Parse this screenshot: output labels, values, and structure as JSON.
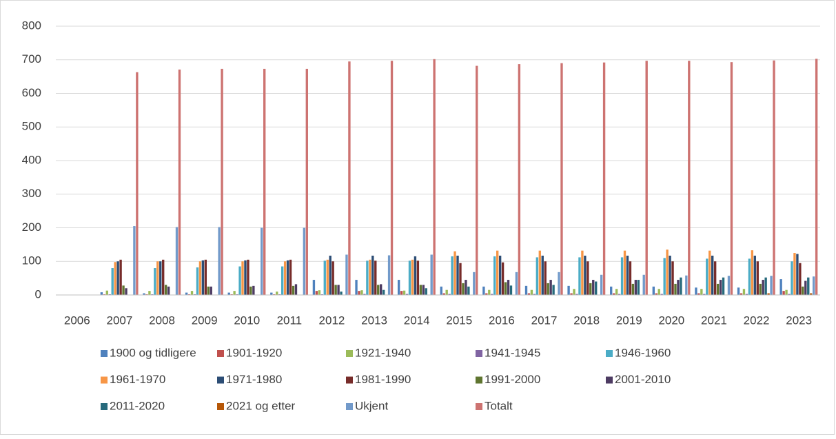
{
  "chart_data": {
    "type": "bar",
    "categories": [
      "2006",
      "2007",
      "2008",
      "2009",
      "2010",
      "2011",
      "2012",
      "2013",
      "2014",
      "2015",
      "2016",
      "2017",
      "2018",
      "2019",
      "2020",
      "2021",
      "2022",
      "2023"
    ],
    "ylim": [
      0,
      800
    ],
    "yticks": [
      0,
      100,
      200,
      300,
      400,
      500,
      600,
      700,
      800
    ],
    "grid": true,
    "legend": "bottom",
    "series": [
      {
        "name": "1900 og tidligere",
        "color": "#4f81bd",
        "values": [
          null,
          8,
          5,
          7,
          7,
          7,
          45,
          45,
          45,
          25,
          25,
          27,
          27,
          25,
          25,
          22,
          22,
          47
        ]
      },
      {
        "name": "1901-1920",
        "color": "#c0504d",
        "values": [
          null,
          2,
          2,
          2,
          2,
          2,
          12,
          12,
          12,
          5,
          5,
          5,
          5,
          5,
          5,
          5,
          5,
          12
        ]
      },
      {
        "name": "1921-1940",
        "color": "#9bbb59",
        "values": [
          null,
          13,
          12,
          12,
          12,
          10,
          14,
          14,
          13,
          15,
          15,
          15,
          18,
          18,
          18,
          18,
          18,
          15
        ]
      },
      {
        "name": "1941-1945",
        "color": "#8064a2",
        "values": [
          null,
          2,
          2,
          2,
          2,
          2,
          2,
          3,
          3,
          3,
          3,
          3,
          3,
          3,
          3,
          3,
          3,
          3
        ]
      },
      {
        "name": "1946-1960",
        "color": "#4bacc6",
        "values": [
          null,
          80,
          80,
          82,
          85,
          85,
          102,
          102,
          102,
          115,
          115,
          112,
          112,
          112,
          110,
          108,
          108,
          100
        ]
      },
      {
        "name": "1961-1970",
        "color": "#f79646",
        "values": [
          null,
          98,
          100,
          100,
          100,
          100,
          105,
          105,
          105,
          130,
          132,
          132,
          132,
          132,
          135,
          132,
          133,
          125
        ]
      },
      {
        "name": "1971-1980",
        "color": "#2c4d75",
        "values": [
          null,
          100,
          100,
          103,
          103,
          103,
          117,
          117,
          115,
          117,
          117,
          117,
          117,
          117,
          117,
          117,
          117,
          122
        ]
      },
      {
        "name": "1981-1990",
        "color": "#772c2a",
        "values": [
          null,
          105,
          105,
          105,
          105,
          105,
          100,
          102,
          102,
          95,
          97,
          100,
          100,
          100,
          100,
          100,
          100,
          95
        ]
      },
      {
        "name": "1991-2000",
        "color": "#5f7530",
        "values": [
          null,
          28,
          30,
          25,
          25,
          27,
          30,
          30,
          30,
          35,
          38,
          35,
          35,
          33,
          33,
          33,
          33,
          25
        ]
      },
      {
        "name": "2001-2010",
        "color": "#4d3b62",
        "values": [
          null,
          20,
          25,
          25,
          27,
          32,
          30,
          32,
          30,
          45,
          45,
          45,
          45,
          45,
          45,
          45,
          45,
          42
        ]
      },
      {
        "name": "2011-2020",
        "color": "#276a7c",
        "values": [
          null,
          0,
          0,
          0,
          0,
          0,
          10,
          15,
          20,
          25,
          28,
          30,
          40,
          45,
          52,
          52,
          52,
          52
        ]
      },
      {
        "name": "2021 og etter",
        "color": "#b65708",
        "values": [
          null,
          0,
          0,
          0,
          0,
          0,
          0,
          0,
          0,
          0,
          0,
          0,
          0,
          0,
          0,
          0,
          5,
          5
        ]
      },
      {
        "name": "Ukjent",
        "color": "#729aca",
        "values": [
          null,
          205,
          202,
          202,
          200,
          200,
          120,
          118,
          120,
          68,
          68,
          68,
          60,
          60,
          58,
          57,
          57,
          55
        ]
      },
      {
        "name": "Totalt",
        "color": "#cd7371",
        "values": [
          null,
          663,
          671,
          673,
          673,
          673,
          695,
          697,
          702,
          682,
          687,
          690,
          692,
          697,
          697,
          693,
          698,
          703
        ]
      }
    ]
  }
}
